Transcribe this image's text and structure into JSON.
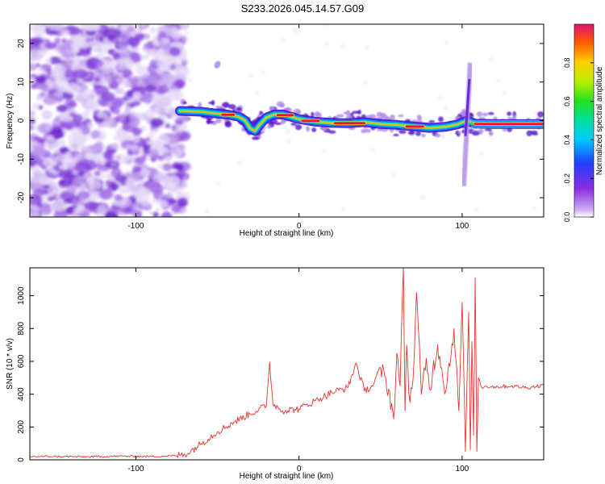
{
  "title": "S233.2026.045.14.57.G09",
  "colors": {
    "snr_line": "#e8322f",
    "ridge_start": "#00d8c0",
    "ridge_mid": "#1a7cff",
    "ridge_core": "#e01840",
    "noise": "#7a2bd8"
  },
  "chart_data": [
    {
      "type": "heatmap",
      "title": "S233.2026.045.14.57.G09",
      "xlabel": "Height of straight line (km)",
      "ylabel": "Frequency (Hz)",
      "xlim": [
        -165,
        150
      ],
      "ylim": [
        -25,
        25
      ],
      "xticks": [
        -100,
        0,
        100
      ],
      "xtick_labels": [
        "-100",
        "0",
        "100"
      ],
      "yticks": [
        -20,
        -10,
        0,
        10,
        20
      ],
      "ytick_labels": [
        "-20",
        "-10",
        "0",
        "10",
        "20"
      ],
      "colorbar": {
        "label": "Normalized spectral amplitude",
        "range": [
          0,
          1
        ],
        "ticks": [
          0,
          0.2,
          0.4,
          0.6,
          0.8
        ],
        "tick_labels": [
          "0.0",
          "0.2",
          "0.4",
          "0.6",
          "0.8"
        ]
      },
      "noise_region": {
        "x_from": -165,
        "x_to": -73
      },
      "ridge": {
        "x": [
          -73,
          -60,
          -50,
          -43,
          -37,
          -33,
          -30,
          -27,
          -24,
          -20,
          -15,
          -10,
          -5,
          0,
          10,
          20,
          30,
          40,
          50,
          60,
          70,
          80,
          90,
          97,
          100,
          103,
          108,
          120,
          140,
          150
        ],
        "freq": [
          2.5,
          2.3,
          1.8,
          1.5,
          1.0,
          0.0,
          -2.0,
          -2.7,
          -1.0,
          0.8,
          1.6,
          1.6,
          1.0,
          0.4,
          -0.3,
          -0.6,
          -0.7,
          -0.4,
          -0.9,
          -1.1,
          -1.5,
          -1.9,
          -1.6,
          -1.0,
          -0.5,
          0.0,
          -0.8,
          -0.9,
          -0.9,
          -0.9
        ]
      },
      "transient": {
        "x": 102,
        "freq_from": -17,
        "freq_to": 15
      }
    },
    {
      "type": "line",
      "xlabel": "Height of straight line (km)",
      "ylabel": "SNR (10 * v/v)",
      "xlim": [
        -165,
        150
      ],
      "ylim": [
        0,
        1170
      ],
      "xticks": [
        -100,
        0,
        100
      ],
      "xtick_labels": [
        "-100",
        "0",
        "100"
      ],
      "yticks": [
        0,
        200,
        400,
        600,
        800,
        1000
      ],
      "ytick_labels": [
        "0",
        "200",
        "400",
        "600",
        "800",
        "1000"
      ],
      "series": [
        {
          "name": "SNR",
          "x": [
            -165,
            -150,
            -130,
            -110,
            -90,
            -75,
            -68,
            -60,
            -50,
            -40,
            -30,
            -20,
            -18,
            -16,
            -10,
            0,
            10,
            20,
            30,
            35,
            40,
            45,
            50,
            55,
            58,
            60,
            62,
            64,
            65,
            66,
            68,
            70,
            72,
            75,
            78,
            80,
            85,
            90,
            95,
            98,
            100,
            102,
            104,
            105,
            106,
            107,
            108,
            109,
            110,
            112,
            115,
            120,
            130,
            140,
            150
          ],
          "y": [
            20,
            20,
            18,
            22,
            20,
            25,
            40,
            100,
            170,
            230,
            280,
            330,
            595,
            340,
            300,
            310,
            360,
            410,
            440,
            590,
            420,
            450,
            560,
            430,
            250,
            650,
            450,
            1170,
            300,
            700,
            350,
            500,
            1020,
            400,
            620,
            430,
            700,
            420,
            800,
            300,
            960,
            50,
            900,
            60,
            720,
            150,
            1110,
            50,
            500,
            440,
            450,
            445,
            450,
            440,
            455
          ]
        }
      ]
    }
  ]
}
